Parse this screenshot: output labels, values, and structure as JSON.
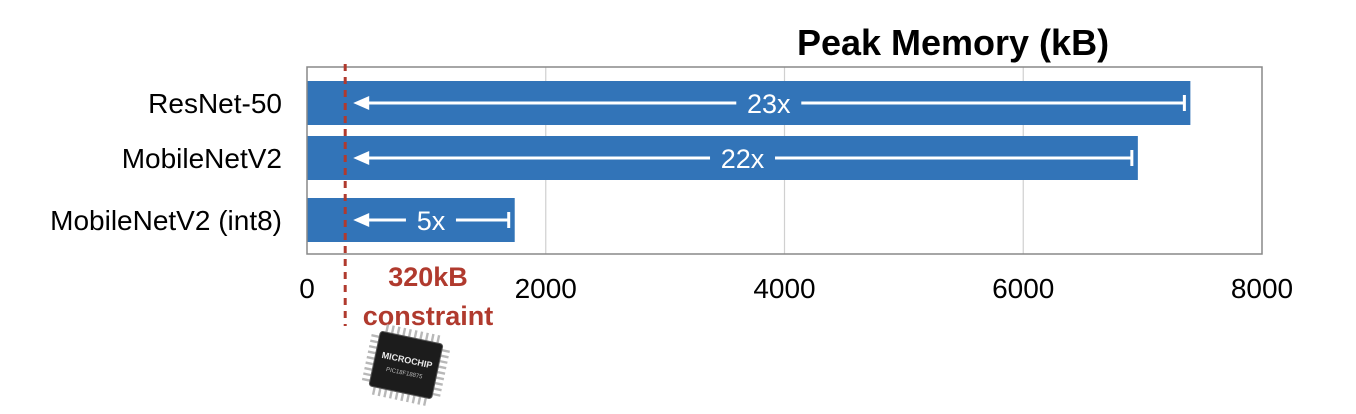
{
  "chart_data": {
    "type": "bar",
    "orientation": "horizontal",
    "title": "Peak Memory (kB)",
    "categories": [
      "ResNet-50",
      "MobileNetV2",
      "MobileNetV2 (int8)"
    ],
    "values": [
      7400,
      6960,
      1740
    ],
    "xlim": [
      0,
      8000
    ],
    "xticks": [
      "0",
      "2000",
      "4000",
      "6000",
      "8000"
    ],
    "xtick_values": [
      0,
      2000,
      4000,
      6000,
      8000
    ],
    "grid": true,
    "ratio_labels": [
      "23x",
      "22x",
      "5x"
    ],
    "constraint": {
      "value": 320,
      "label_line1": "320kB",
      "label_line2": "constraint"
    },
    "chip": {
      "brand": "MICROCHIP",
      "model": "PIC18F18875"
    },
    "colors": {
      "bar": "#3274b8",
      "constraint": "#b03a2e",
      "grid": "#d0d0d0",
      "axis": "#888888",
      "arrow": "#ffffff"
    }
  }
}
